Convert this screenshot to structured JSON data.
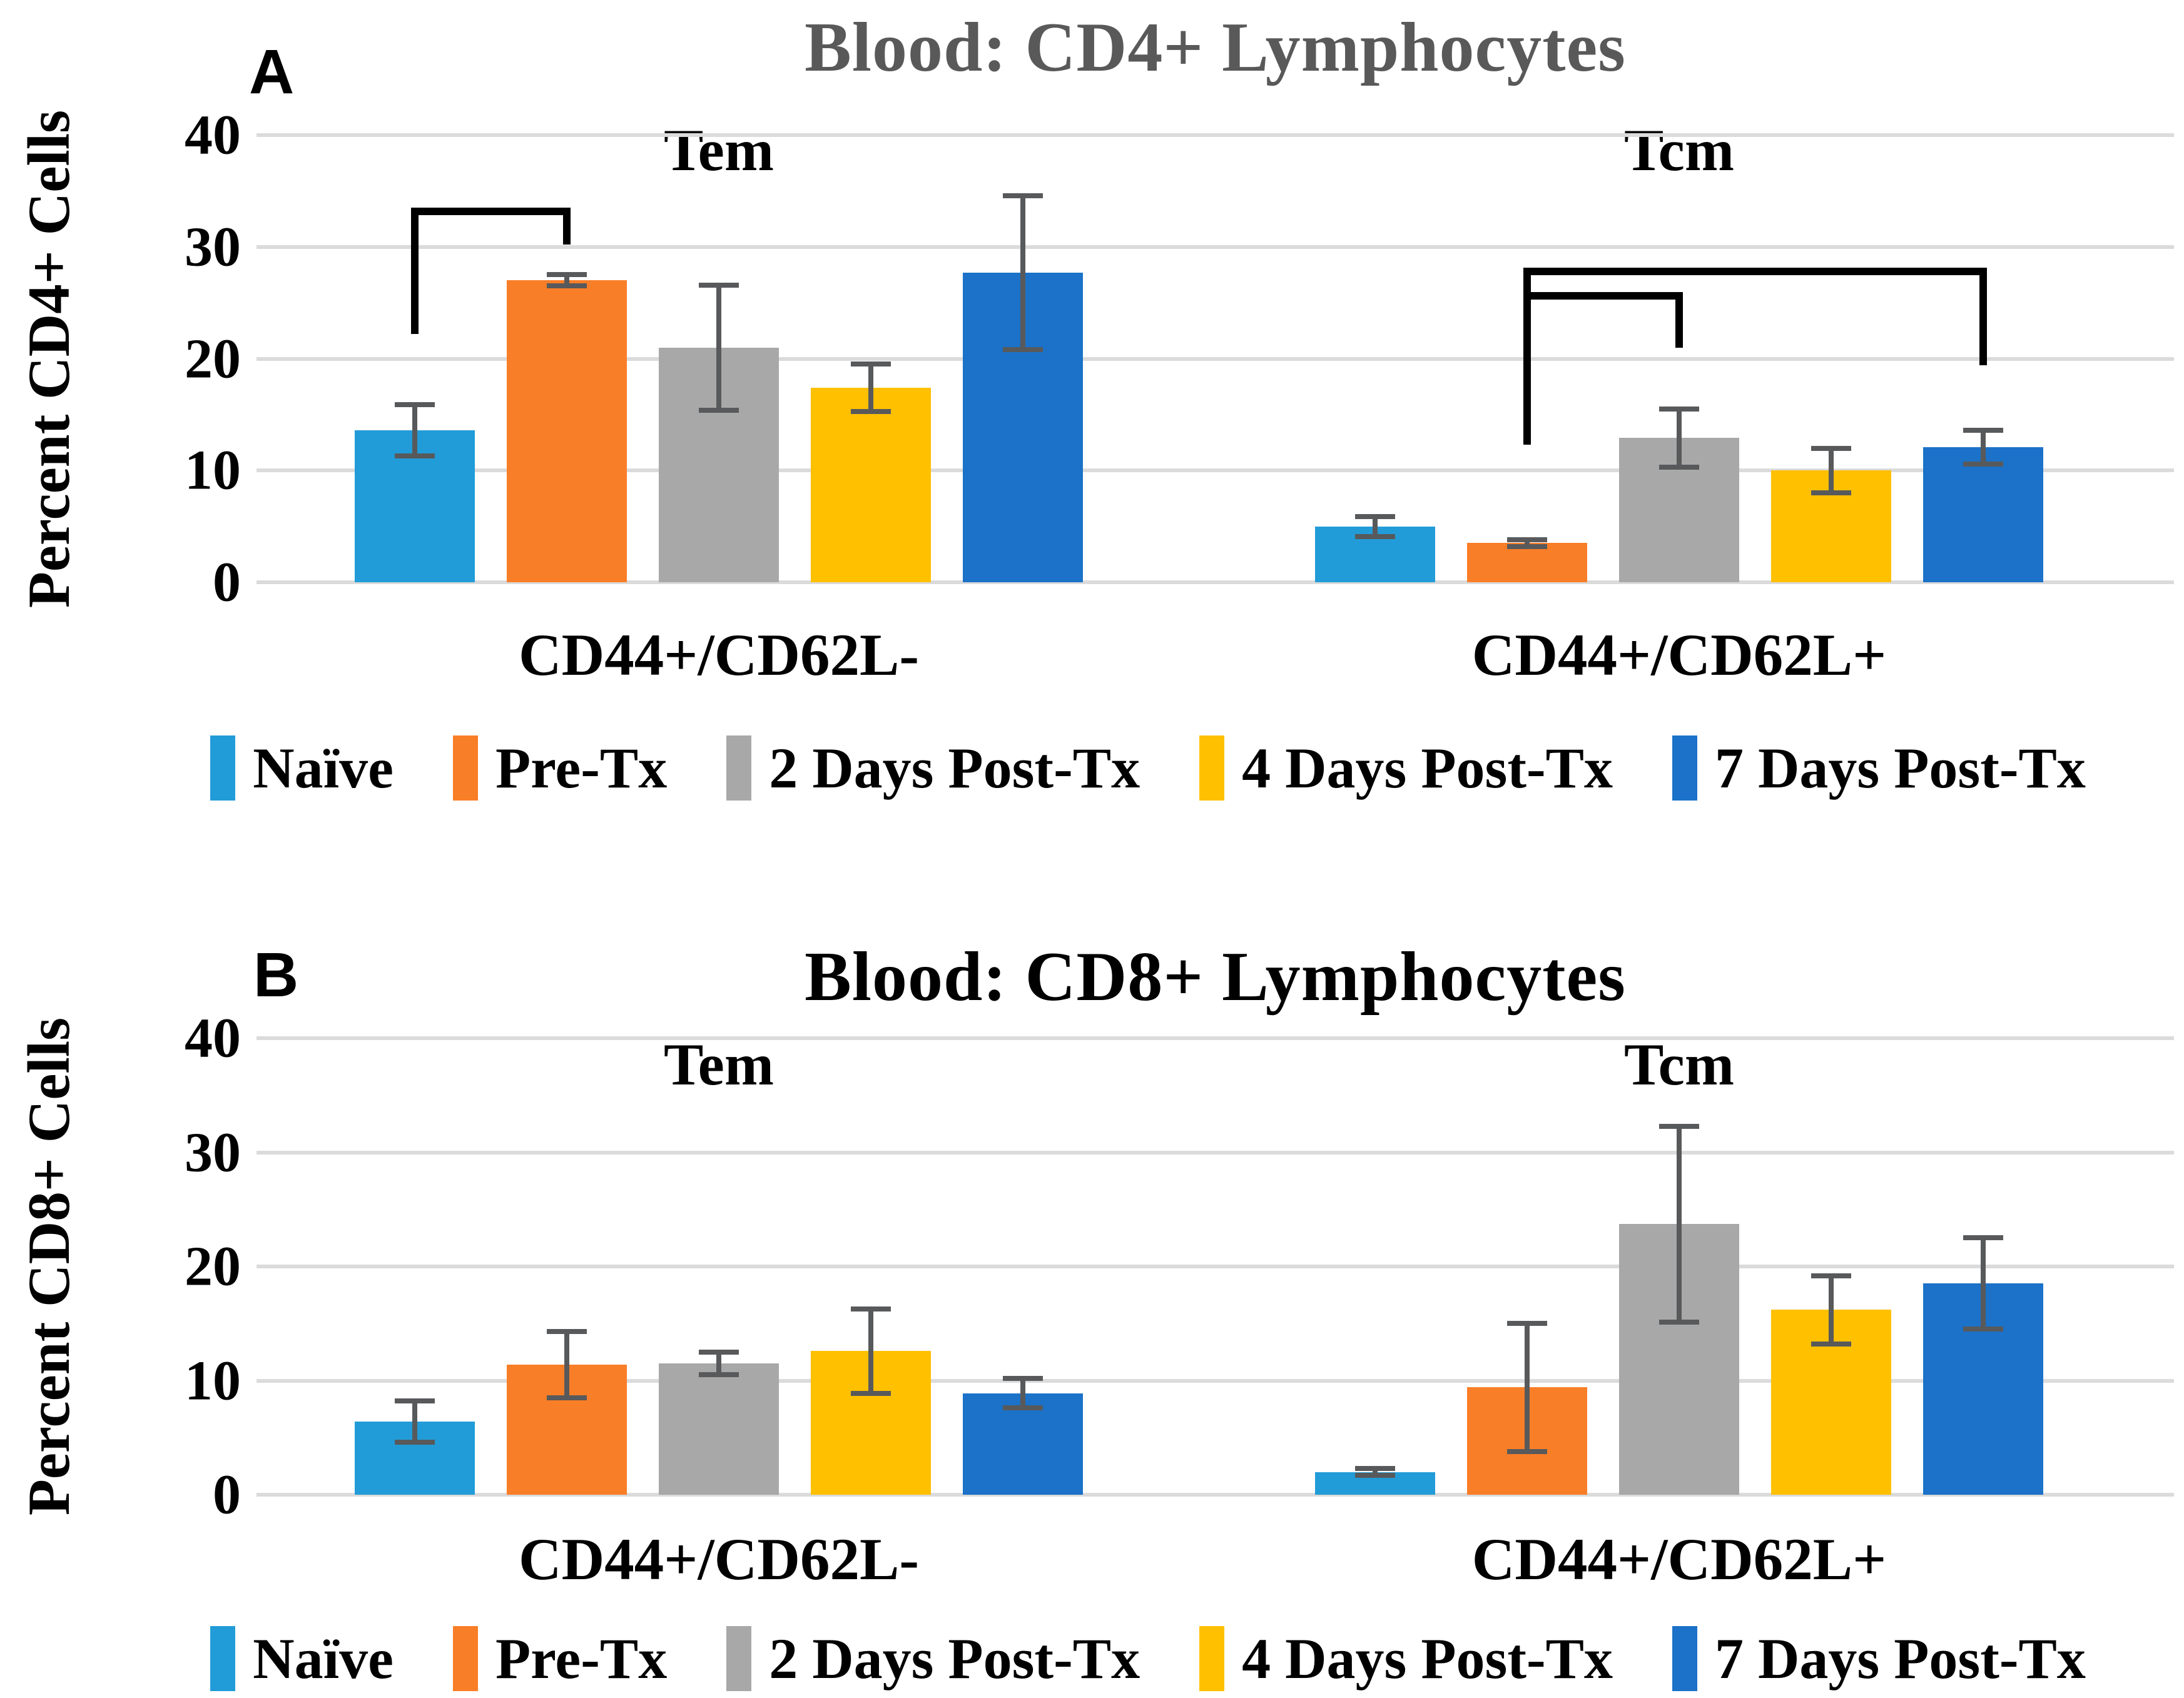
{
  "colors": {
    "background": "#FFFFFF",
    "grid": "#DBDBDB",
    "error_bar": "#58595B",
    "bracket": "#000000"
  },
  "series": [
    {
      "name": "Naïve",
      "color": "#229CD8"
    },
    {
      "name": "Pre-Tx",
      "color": "#F97E28"
    },
    {
      "name": "2 Days Post-Tx",
      "color": "#A8A8A8"
    },
    {
      "name": "4 Days Post-Tx",
      "color": "#FFC000"
    },
    {
      "name": "7 Days Post-Tx",
      "color": "#1B72C8"
    }
  ],
  "chart_data": [
    {
      "type": "bar",
      "panel": "A",
      "title": "Blood: CD4+ Lymphocytes",
      "title_color": "#595959",
      "ylabel": "Percent CD4+ Cells",
      "ylim": [
        0,
        40
      ],
      "yticks": [
        0,
        10,
        20,
        30,
        40
      ],
      "grid": true,
      "legend_position": "bottom",
      "categories": [
        "CD44+/CD62L-",
        "CD44+/CD62L+"
      ],
      "group_annotations": [
        "Tem",
        "Tcm"
      ],
      "series": [
        {
          "name": "Naïve",
          "values": [
            13.6,
            5.0
          ],
          "errors": [
            2.3,
            0.9
          ]
        },
        {
          "name": "Pre-Tx",
          "values": [
            27.0,
            3.5
          ],
          "errors": [
            0.5,
            0.3
          ]
        },
        {
          "name": "2 Days Post-Tx",
          "values": [
            21.0,
            12.9
          ],
          "errors": [
            5.6,
            2.6
          ]
        },
        {
          "name": "4 Days Post-Tx",
          "values": [
            17.4,
            10.0
          ],
          "errors": [
            2.1,
            2.0
          ]
        },
        {
          "name": "7 Days Post-Tx",
          "values": [
            27.7,
            12.1
          ],
          "errors": [
            6.9,
            1.5
          ]
        }
      ],
      "significance_brackets": [
        {
          "group": 0,
          "from_series": 0,
          "to_series": 1,
          "top": 33.2,
          "left_drop_to": 22.2,
          "right_drop_to": 30.2
        },
        {
          "group": 1,
          "from_series": 1,
          "to_series": 4,
          "top": 27.8,
          "left_drop_to": 12.3,
          "right_drop_to": 19.4
        },
        {
          "group": 1,
          "from_series": 1,
          "to_series": 2,
          "top": 25.6,
          "left_drop_to": null,
          "right_drop_to": 21.0
        }
      ]
    },
    {
      "type": "bar",
      "panel": "B",
      "title": "Blood: CD8+ Lymphocytes",
      "title_color": "#000000",
      "ylabel": "Percent CD8+ Cells",
      "ylim": [
        0,
        40
      ],
      "yticks": [
        0,
        10,
        20,
        30,
        40
      ],
      "grid": true,
      "legend_position": "bottom",
      "categories": [
        "CD44+/CD62L-",
        "CD44+/CD62L+"
      ],
      "group_annotations": [
        "Tem",
        "Tcm"
      ],
      "series": [
        {
          "name": "Naïve",
          "values": [
            6.4,
            2.0
          ],
          "errors": [
            1.8,
            0.3
          ]
        },
        {
          "name": "Pre-Tx",
          "values": [
            11.4,
            9.4
          ],
          "errors": [
            2.9,
            5.6
          ]
        },
        {
          "name": "2 Days Post-Tx",
          "values": [
            11.5,
            23.7
          ],
          "errors": [
            1.0,
            8.6
          ]
        },
        {
          "name": "4 Days Post-Tx",
          "values": [
            12.6,
            16.2
          ],
          "errors": [
            3.7,
            3.0
          ]
        },
        {
          "name": "7 Days Post-Tx",
          "values": [
            8.9,
            18.5
          ],
          "errors": [
            1.3,
            4.0
          ]
        }
      ],
      "significance_brackets": []
    }
  ]
}
